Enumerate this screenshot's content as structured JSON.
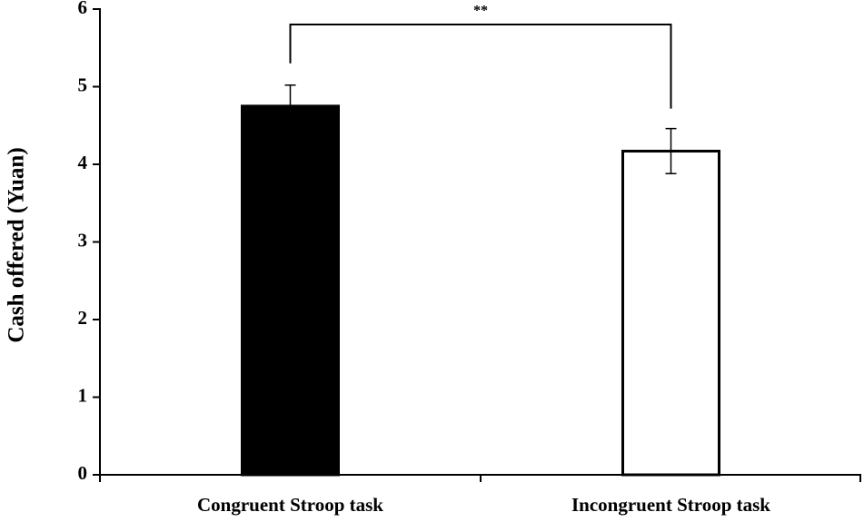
{
  "chart_data": {
    "type": "bar",
    "ylabel": "Cash offered (Yuan)",
    "categories": [
      "Congruent Stroop task",
      "Incongruent Stroop task"
    ],
    "values": [
      4.75,
      4.17
    ],
    "errors": [
      0.27,
      0.29
    ],
    "colors": [
      "#000000",
      "#ffffff"
    ],
    "edgecolor": "#000000",
    "ylim": [
      0,
      6
    ],
    "yticks": [
      0,
      1,
      2,
      3,
      4,
      5,
      6
    ],
    "annotation": "**"
  }
}
